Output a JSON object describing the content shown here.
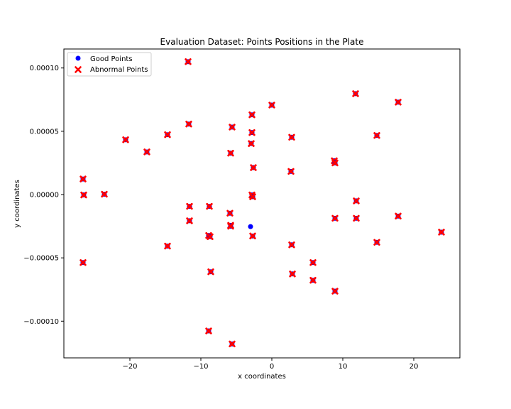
{
  "chart_data": {
    "type": "scatter",
    "title": "Evaluation Dataset: Points Positions in the Plate",
    "xlabel": "x coordinates",
    "ylabel": "y coordinates",
    "xlim": [
      -29.3,
      26.5
    ],
    "ylim": [
      -0.000129,
      0.000115
    ],
    "x_ticks": [
      -20,
      -10,
      0,
      10,
      20
    ],
    "x_tick_labels": [
      "−20",
      "−10",
      "0",
      "10",
      "20"
    ],
    "y_ticks": [
      -0.0001,
      -5e-05,
      0,
      5e-05,
      0.0001
    ],
    "y_tick_labels": [
      "−0.00010",
      "−0.00005",
      "0.00000",
      "0.00005",
      "0.00010"
    ],
    "grid": false,
    "legend_position": "top-left",
    "series": [
      {
        "name": "Good Points",
        "marker": "circle",
        "color": "#0000ff",
        "points": [
          [
            -3.0,
            -2.53e-05
          ]
        ]
      },
      {
        "name": "Abnormal Points",
        "marker": "x",
        "color": "#ff0000",
        "points": [
          [
            -11.8,
            0.000105
          ],
          [
            0.0,
            7.07e-05
          ],
          [
            11.8,
            7.97e-05
          ],
          [
            17.8,
            7.3e-05
          ],
          [
            -2.8,
            6.3e-05
          ],
          [
            -11.7,
            5.57e-05
          ],
          [
            -5.6,
            5.33e-05
          ],
          [
            -2.8,
            4.9e-05
          ],
          [
            -14.7,
            4.73e-05
          ],
          [
            2.8,
            4.53e-05
          ],
          [
            14.8,
            4.67e-05
          ],
          [
            -20.6,
            4.33e-05
          ],
          [
            -2.9,
            4.03e-05
          ],
          [
            -17.6,
            3.37e-05
          ],
          [
            -5.8,
            3.27e-05
          ],
          [
            8.8,
            2.67e-05
          ],
          [
            8.9,
            2.5e-05
          ],
          [
            -2.6,
            2.13e-05
          ],
          [
            2.7,
            1.83e-05
          ],
          [
            -26.6,
            1.23e-05
          ],
          [
            -23.6,
            3e-07
          ],
          [
            -26.5,
            -3e-07
          ],
          [
            -2.8,
            -3e-07
          ],
          [
            -2.7,
            -1.7e-06
          ],
          [
            11.9,
            -5e-06
          ],
          [
            -11.6,
            -9.3e-06
          ],
          [
            -8.8,
            -9.3e-06
          ],
          [
            -5.9,
            -1.47e-05
          ],
          [
            17.8,
            -1.7e-05
          ],
          [
            8.9,
            -1.87e-05
          ],
          [
            11.9,
            -1.87e-05
          ],
          [
            -11.6,
            -2.07e-05
          ],
          [
            -5.8,
            -2.43e-05
          ],
          [
            -5.8,
            -2.5e-05
          ],
          [
            23.9,
            -2.97e-05
          ],
          [
            -8.9,
            -3.23e-05
          ],
          [
            -8.7,
            -3.33e-05
          ],
          [
            -2.7,
            -3.27e-05
          ],
          [
            14.8,
            -3.77e-05
          ],
          [
            2.8,
            -3.97e-05
          ],
          [
            -14.7,
            -4.07e-05
          ],
          [
            -26.6,
            -5.37e-05
          ],
          [
            5.8,
            -5.37e-05
          ],
          [
            -8.6,
            -6.1e-05
          ],
          [
            2.9,
            -6.27e-05
          ],
          [
            5.8,
            -6.77e-05
          ],
          [
            8.9,
            -7.63e-05
          ],
          [
            -8.9,
            -0.0001077
          ],
          [
            -5.6,
            -0.000118
          ]
        ]
      }
    ]
  }
}
